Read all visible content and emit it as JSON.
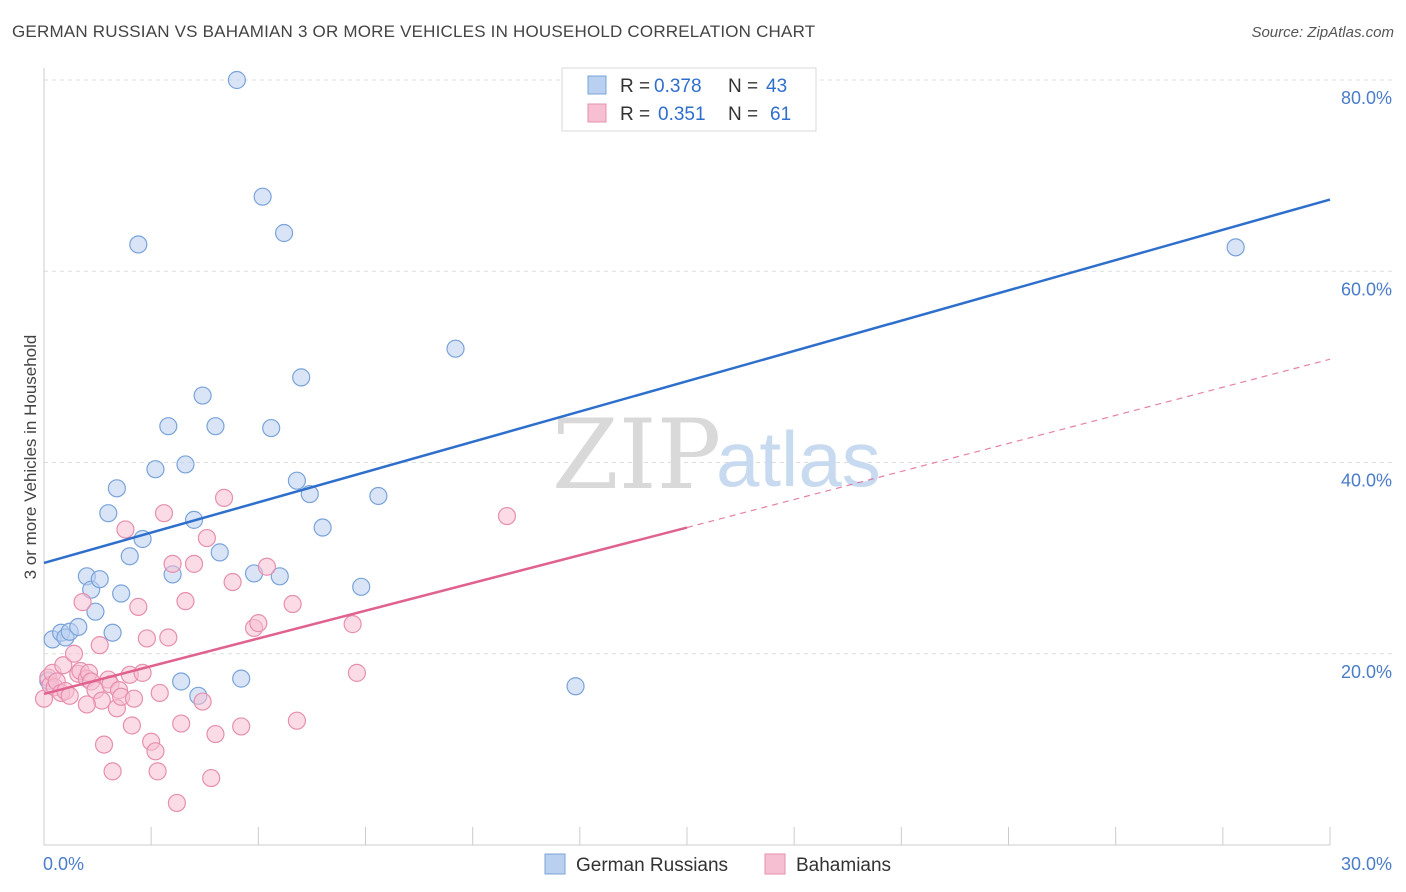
{
  "header": {
    "title": "GERMAN RUSSIAN VS BAHAMIAN 3 OR MORE VEHICLES IN HOUSEHOLD CORRELATION CHART",
    "source": "Source: ZipAtlas.com"
  },
  "watermark": {
    "zip": "ZIP",
    "atlas": "atlas"
  },
  "legend_top": [
    {
      "r_label": "R =",
      "r_value": "0.378",
      "n_label": "N =",
      "n_value": "43"
    },
    {
      "r_label": "R =",
      "r_value": "0.351",
      "n_label": "N =",
      "n_value": "61"
    }
  ],
  "legend_bottom": [
    "German Russians",
    "Bahamians"
  ],
  "colors": {
    "blue_fill": "#b9d0f0",
    "blue_stroke": "#7aa3d9",
    "blue_line": "#2f6fcc",
    "pink_fill": "#f7c0d2",
    "pink_stroke": "#e68fae",
    "pink_line": "#e0628f",
    "tick": "#4a7cc9",
    "grid": "#dddddd"
  },
  "chart_data": {
    "type": "scatter",
    "title": "GERMAN RUSSIAN VS BAHAMIAN 3 OR MORE VEHICLES IN HOUSEHOLD CORRELATION CHART",
    "xlabel": "",
    "ylabel": "3 or more Vehicles in Household",
    "xlim": [
      0,
      30
    ],
    "ylim": [
      0,
      80
    ],
    "x_tick_labels": [
      "0.0%",
      "30.0%"
    ],
    "y_ticks": [
      20,
      40,
      60,
      80
    ],
    "y_tick_labels": [
      "20.0%",
      "40.0%",
      "60.0%",
      "80.0%"
    ],
    "grid": true,
    "series": [
      {
        "name": "German Russians",
        "r": 0.378,
        "n": 43,
        "trend": {
          "x": [
            0,
            30
          ],
          "y": [
            29.5,
            67.5
          ],
          "dashed_extension": false
        },
        "points": [
          [
            0.2,
            21.5
          ],
          [
            0.4,
            22.2
          ],
          [
            0.5,
            21.7
          ],
          [
            0.6,
            22.3
          ],
          [
            0.8,
            22.8
          ],
          [
            1.0,
            28.1
          ],
          [
            1.1,
            26.7
          ],
          [
            1.2,
            24.4
          ],
          [
            1.3,
            27.8
          ],
          [
            1.5,
            34.7
          ],
          [
            1.6,
            22.2
          ],
          [
            1.7,
            37.3
          ],
          [
            1.8,
            26.3
          ],
          [
            2.0,
            30.2
          ],
          [
            2.2,
            62.8
          ],
          [
            2.3,
            32.0
          ],
          [
            2.6,
            39.3
          ],
          [
            2.9,
            43.8
          ],
          [
            3.0,
            28.3
          ],
          [
            3.2,
            17.1
          ],
          [
            3.3,
            39.8
          ],
          [
            3.5,
            34.0
          ],
          [
            3.6,
            15.6
          ],
          [
            3.7,
            47.0
          ],
          [
            4.0,
            43.8
          ],
          [
            4.1,
            30.6
          ],
          [
            4.5,
            80.0
          ],
          [
            4.6,
            17.4
          ],
          [
            4.9,
            28.4
          ],
          [
            5.1,
            67.8
          ],
          [
            5.3,
            43.6
          ],
          [
            5.5,
            28.1
          ],
          [
            5.6,
            64.0
          ],
          [
            5.9,
            38.1
          ],
          [
            6.0,
            48.9
          ],
          [
            6.2,
            36.7
          ],
          [
            6.5,
            33.2
          ],
          [
            7.4,
            27.0
          ],
          [
            7.8,
            36.5
          ],
          [
            9.6,
            51.9
          ],
          [
            12.4,
            16.6
          ],
          [
            27.8,
            62.5
          ],
          [
            0.1,
            17.2
          ]
        ]
      },
      {
        "name": "Bahamians",
        "r": 0.351,
        "n": 61,
        "trend": {
          "x": [
            0,
            15
          ],
          "y": [
            15.8,
            33.2
          ],
          "dashed_extension": true,
          "extension": {
            "x": [
              15,
              30
            ],
            "y": [
              33.2,
              50.8
            ]
          }
        },
        "points": [
          [
            0.0,
            15.3
          ],
          [
            0.1,
            17.5
          ],
          [
            0.15,
            16.7
          ],
          [
            0.2,
            18.0
          ],
          [
            0.25,
            16.5
          ],
          [
            0.3,
            17.1
          ],
          [
            0.4,
            15.9
          ],
          [
            0.45,
            18.8
          ],
          [
            0.5,
            16.1
          ],
          [
            0.6,
            15.6
          ],
          [
            0.7,
            20.0
          ],
          [
            0.8,
            17.9
          ],
          [
            0.85,
            18.2
          ],
          [
            0.9,
            25.4
          ],
          [
            1.0,
            17.4
          ],
          [
            1.05,
            18.0
          ],
          [
            1.1,
            17.1
          ],
          [
            1.2,
            16.2
          ],
          [
            1.3,
            20.9
          ],
          [
            1.35,
            15.1
          ],
          [
            1.4,
            10.5
          ],
          [
            1.5,
            17.3
          ],
          [
            1.55,
            16.8
          ],
          [
            1.6,
            7.7
          ],
          [
            1.7,
            14.3
          ],
          [
            1.75,
            16.2
          ],
          [
            1.8,
            15.5
          ],
          [
            1.9,
            33.0
          ],
          [
            2.0,
            17.8
          ],
          [
            2.1,
            15.3
          ],
          [
            2.2,
            24.9
          ],
          [
            2.3,
            18.0
          ],
          [
            2.4,
            21.6
          ],
          [
            2.5,
            10.8
          ],
          [
            2.6,
            9.8
          ],
          [
            2.65,
            7.7
          ],
          [
            2.7,
            15.9
          ],
          [
            2.8,
            34.7
          ],
          [
            2.9,
            21.7
          ],
          [
            3.0,
            29.4
          ],
          [
            3.1,
            4.4
          ],
          [
            3.2,
            12.7
          ],
          [
            3.3,
            25.5
          ],
          [
            3.5,
            29.4
          ],
          [
            3.7,
            15.0
          ],
          [
            3.8,
            32.1
          ],
          [
            3.9,
            7.0
          ],
          [
            4.0,
            11.6
          ],
          [
            4.2,
            36.3
          ],
          [
            4.4,
            27.5
          ],
          [
            4.6,
            12.4
          ],
          [
            4.9,
            22.7
          ],
          [
            5.0,
            23.2
          ],
          [
            5.2,
            29.1
          ],
          [
            5.8,
            25.2
          ],
          [
            5.9,
            13.0
          ],
          [
            7.2,
            23.1
          ],
          [
            7.3,
            18.0
          ],
          [
            10.8,
            34.4
          ],
          [
            2.05,
            12.5
          ],
          [
            1.0,
            14.7
          ]
        ]
      }
    ]
  }
}
